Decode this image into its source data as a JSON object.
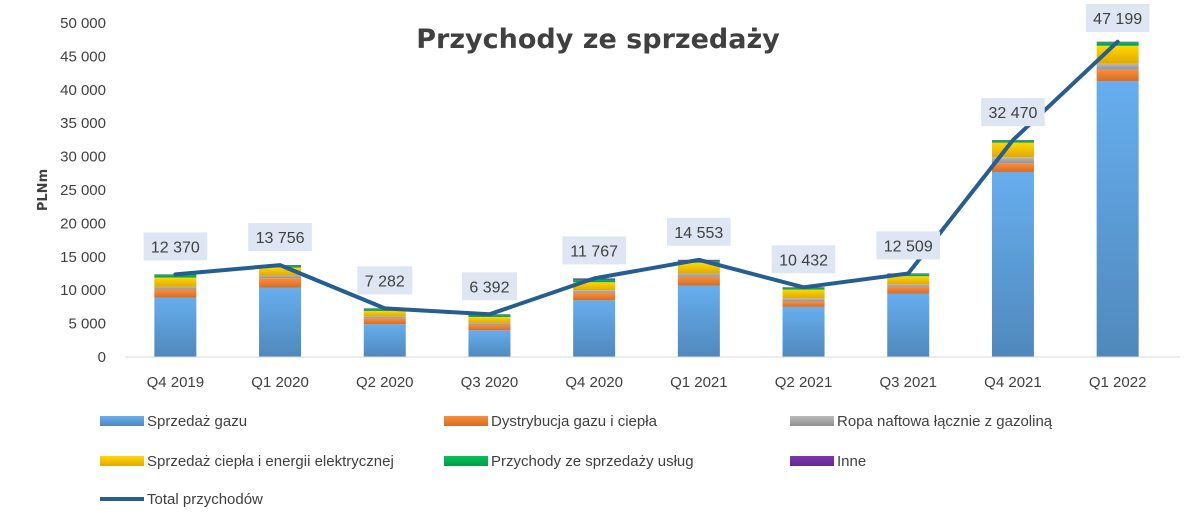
{
  "chart_data": {
    "type": "bar",
    "stacked": true,
    "title": "Przychody ze sprzedaży",
    "xlabel": "",
    "ylabel": "PLNm",
    "ylim": [
      0,
      50000
    ],
    "yticks": [
      0,
      5000,
      10000,
      15000,
      20000,
      25000,
      30000,
      35000,
      40000,
      45000,
      50000
    ],
    "ytick_labels": [
      "0",
      "5 000",
      "10 000",
      "15 000",
      "20 000",
      "25 000",
      "30 000",
      "35 000",
      "40 000",
      "45 000",
      "50 000"
    ],
    "grid": false,
    "legend_position": "bottom",
    "categories": [
      "Q4 2019",
      "Q1 2020",
      "Q2 2020",
      "Q3 2020",
      "Q4 2020",
      "Q1 2021",
      "Q2 2021",
      "Q3 2021",
      "Q4 2021",
      "Q1 2022"
    ],
    "series": [
      {
        "name": "Sprzedaż gazu",
        "kind": "bar",
        "color": "#5B9BD5",
        "values": [
          8900,
          10400,
          4900,
          4000,
          8500,
          10700,
          7500,
          9500,
          27700,
          41300
        ]
      },
      {
        "name": "Dystrybucja gazu i ciepła",
        "kind": "bar",
        "color": "#ED7D31",
        "values": [
          1200,
          1400,
          900,
          800,
          1100,
          1300,
          800,
          1000,
          1300,
          1700
        ]
      },
      {
        "name": "Ropa naftowa łącznie z gazoliną",
        "kind": "bar",
        "color": "#A5A5A5",
        "values": [
          400,
          400,
          300,
          300,
          400,
          500,
          500,
          400,
          900,
          900
        ]
      },
      {
        "name": "Sprzedaż ciepła i energii elektrycznej",
        "kind": "bar",
        "color": "#FFC000",
        "values": [
          1400,
          1200,
          800,
          900,
          1200,
          1600,
          1300,
          1200,
          2200,
          2700
        ]
      },
      {
        "name": "Przychody ze sprzedaży usług",
        "kind": "bar",
        "color": "#00B050",
        "values": [
          400,
          300,
          300,
          300,
          400,
          300,
          300,
          300,
          300,
          500
        ]
      },
      {
        "name": "Inne",
        "kind": "bar",
        "color": "#7030A0",
        "values": [
          70,
          56,
          82,
          92,
          167,
          153,
          32,
          109,
          70,
          99
        ]
      },
      {
        "name": "Total przychodów",
        "kind": "line",
        "color": "#255E91",
        "values": [
          12370,
          13756,
          7282,
          6392,
          11767,
          14553,
          10432,
          12509,
          32470,
          47199
        ],
        "labels": [
          "12 370",
          "13 756",
          "7 282",
          "6 392",
          "11 767",
          "14 553",
          "10 432",
          "12 509",
          "32 470",
          "47 199"
        ]
      }
    ]
  }
}
